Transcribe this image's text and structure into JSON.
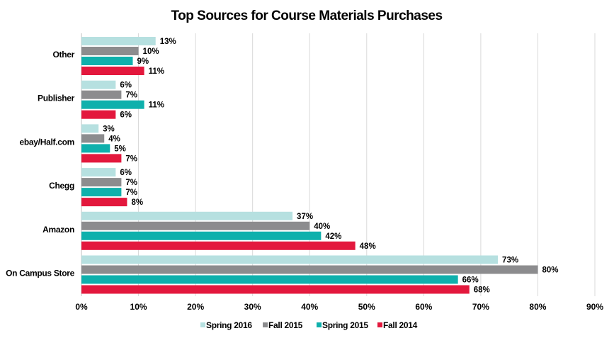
{
  "chart_data": {
    "type": "bar",
    "orientation": "horizontal",
    "title": "Top Sources for Course Materials  Purchases",
    "categories": [
      "Other",
      "Publisher",
      "ebay/Half.com",
      "Chegg",
      "Amazon",
      "On Campus Store"
    ],
    "series": [
      {
        "name": "Spring 2016",
        "color": "#b6e0e0",
        "values": [
          13,
          6,
          3,
          6,
          37,
          73
        ]
      },
      {
        "name": "Fall 2015",
        "color": "#8c8c8e",
        "values": [
          10,
          7,
          4,
          7,
          40,
          80
        ]
      },
      {
        "name": "Spring 2015",
        "color": "#0fb0ac",
        "values": [
          9,
          11,
          5,
          7,
          42,
          66
        ]
      },
      {
        "name": "Fall 2014",
        "color": "#e3183d",
        "values": [
          11,
          6,
          7,
          8,
          48,
          68
        ]
      }
    ],
    "xlim": [
      0,
      90
    ],
    "xticks": [
      0,
      10,
      20,
      30,
      40,
      50,
      60,
      70,
      80,
      90
    ],
    "tick_suffix": "%",
    "value_suffix": "%",
    "grid": true,
    "legend_position": "bottom"
  }
}
